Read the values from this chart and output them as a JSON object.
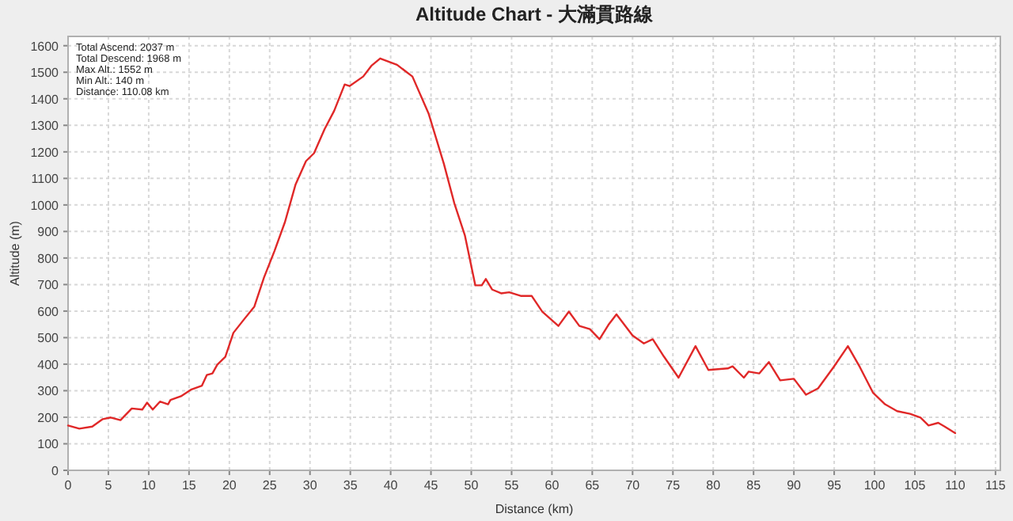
{
  "chart_data": {
    "type": "line",
    "title": "Altitude Chart - 大滿貫路線",
    "xlabel": "Distance (km)",
    "ylabel": "Altitude (m)",
    "annotations": [
      "Total Ascend: 2037 m",
      "Total Descend: 1968 m",
      "Max Alt.: 1552 m",
      "Min Alt.: 140 m",
      "Distance: 110.08 km"
    ],
    "xlim": [
      0,
      115.6
    ],
    "ylim": [
      0,
      1635
    ],
    "xticks": [
      0,
      5,
      10,
      15,
      20,
      25,
      30,
      35,
      40,
      45,
      50,
      55,
      60,
      65,
      70,
      75,
      80,
      85,
      90,
      95,
      100,
      105,
      110,
      115
    ],
    "yticks": [
      0,
      100,
      200,
      300,
      400,
      500,
      600,
      700,
      800,
      900,
      1000,
      1100,
      1200,
      1300,
      1400,
      1500,
      1600
    ],
    "grid": true,
    "marker": "none",
    "line_style": "solid",
    "series": [
      {
        "color": "#e02828",
        "x": [
          0,
          1.4,
          3,
          4.3,
          5.3,
          6.5,
          7.9,
          9.2,
          9.8,
          10.5,
          11.4,
          12.4,
          12.7,
          14,
          15.3,
          16.6,
          17.2,
          17.9,
          18.5,
          19.5,
          20.5,
          21.8,
          23.1,
          24.3,
          25.6,
          26.9,
          28.2,
          29.5,
          30.5,
          31.8,
          33,
          34.3,
          34.9,
          36.6,
          37.6,
          38.7,
          40.8,
          42.7,
          44.7,
          46.6,
          47.9,
          49.2,
          50.5,
          51.3,
          51.8,
          52.6,
          53.7,
          54.7,
          56.2,
          57.5,
          58.8,
          60.8,
          62.1,
          63.4,
          64.7,
          65.9,
          67.0,
          68.0,
          70.0,
          71.4,
          72.5,
          73.9,
          75.7,
          77.8,
          79.4,
          81.8,
          82.4,
          83.8,
          84.4,
          85.7,
          86.9,
          88.3,
          90.0,
          91.5,
          93.0,
          94.9,
          96.7,
          98.2,
          99.8,
          101.3,
          102.8,
          104.4,
          105.7,
          106.7,
          107.9,
          108.7,
          110.0
        ],
        "values": [
          169,
          157,
          165,
          193,
          199,
          189,
          233,
          229,
          255,
          229,
          259,
          249,
          265,
          279,
          305,
          319,
          359,
          365,
          398,
          428,
          518,
          568,
          617,
          727,
          827,
          936,
          1076,
          1165,
          1195,
          1285,
          1355,
          1454,
          1448,
          1484,
          1524,
          1552,
          1528,
          1484,
          1345,
          1155,
          1006,
          886,
          697,
          697,
          721,
          681,
          667,
          671,
          657,
          657,
          598,
          544,
          598,
          544,
          532,
          494,
          548,
          588,
          508,
          478,
          494,
          428,
          349,
          468,
          378,
          384,
          392,
          349,
          372,
          365,
          408,
          339,
          345,
          285,
          309,
          388,
          468,
          388,
          293,
          249,
          223,
          213,
          199,
          169,
          179,
          165,
          140
        ]
      }
    ]
  }
}
